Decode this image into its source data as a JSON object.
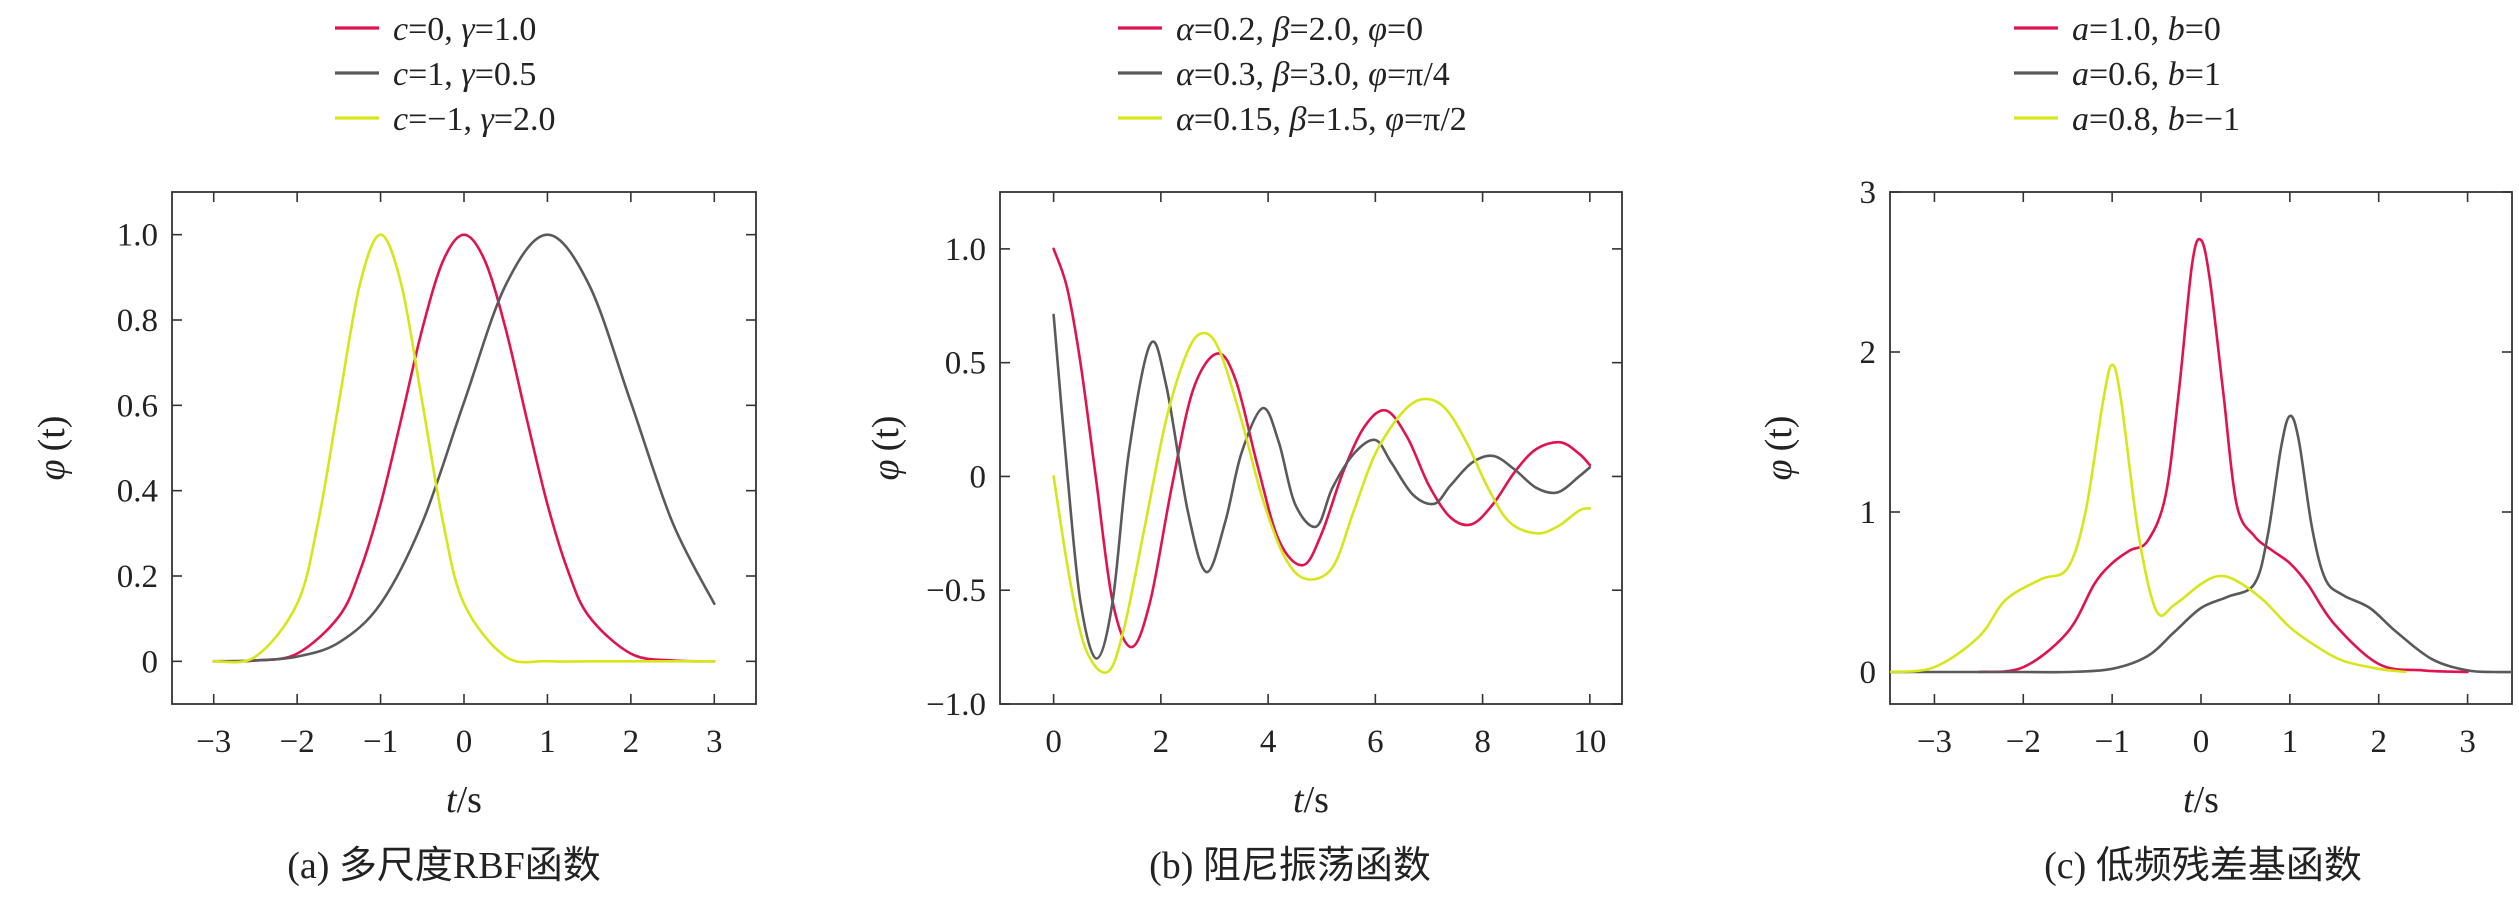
{
  "colors": {
    "red": "#e0134f",
    "gray": "#5a5a5a",
    "yellow": "#d6e61a"
  },
  "chart_data": [
    {
      "type": "line",
      "caption": "(a) 多尺度RBF函数",
      "xlabel": {
        "var": "t",
        "unit": "/s"
      },
      "ylabel": {
        "var": "φ",
        "arg": "(t)"
      },
      "xlim": [
        -3.5,
        3.5
      ],
      "ylim": [
        -0.1,
        1.1
      ],
      "xticks": [
        -3,
        -2,
        -1,
        0,
        1,
        2,
        3
      ],
      "xtick_labels": [
        "−3",
        "−2",
        "−1",
        "0",
        "1",
        "2",
        "3"
      ],
      "yticks": [
        0,
        0.2,
        0.4,
        0.6,
        0.8,
        1.0
      ],
      "ytick_labels": [
        "0",
        "0.2",
        "0.4",
        "0.6",
        "0.8",
        "1.0"
      ],
      "grid": false,
      "legend_placement": "top",
      "series": [
        {
          "name": "c=0, γ=1.0",
          "legend": [
            [
              "i",
              "c"
            ],
            [
              "r",
              "=0, "
            ],
            [
              "i",
              "γ"
            ],
            [
              "r",
              "=1.0"
            ]
          ],
          "color": "red",
          "x": [
            -3,
            -2.5,
            -2,
            -1.5,
            -1.25,
            -1,
            -0.75,
            -0.5,
            -0.25,
            0,
            0.25,
            0.5,
            0.75,
            1,
            1.25,
            1.5,
            2,
            2.5,
            3
          ],
          "y": [
            0.0001,
            0.002,
            0.018,
            0.105,
            0.21,
            0.368,
            0.57,
            0.779,
            0.939,
            1.0,
            0.939,
            0.779,
            0.57,
            0.368,
            0.21,
            0.105,
            0.018,
            0.002,
            0.0001
          ]
        },
        {
          "name": "c=1, γ=0.5",
          "legend": [
            [
              "i",
              "c"
            ],
            [
              "r",
              "=1, "
            ],
            [
              "i",
              "γ"
            ],
            [
              "r",
              "=0.5"
            ]
          ],
          "color": "gray",
          "x": [
            -3,
            -2.5,
            -2,
            -1.5,
            -1,
            -0.5,
            0,
            0.5,
            1,
            1.5,
            2,
            2.5,
            3
          ],
          "y": [
            0.0003,
            0.002,
            0.011,
            0.044,
            0.135,
            0.325,
            0.607,
            0.882,
            1.0,
            0.882,
            0.607,
            0.325,
            0.135
          ]
        },
        {
          "name": "c=−1, γ=2.0",
          "legend": [
            [
              "i",
              "c"
            ],
            [
              "r",
              "=−1, "
            ],
            [
              "i",
              "γ"
            ],
            [
              "r",
              "=2.0"
            ]
          ],
          "color": "yellow",
          "x": [
            -3,
            -2.5,
            -2,
            -1.75,
            -1.5,
            -1.25,
            -1,
            -0.75,
            -0.5,
            -0.25,
            0,
            0.5,
            1,
            1.5,
            2,
            2.5,
            3
          ],
          "y": [
            0.0003,
            0.011,
            0.135,
            0.325,
            0.607,
            0.882,
            1.0,
            0.882,
            0.607,
            0.325,
            0.135,
            0.011,
            0.0003,
            0,
            0,
            0,
            0
          ]
        }
      ]
    },
    {
      "type": "line",
      "caption": "(b) 阻尼振荡函数",
      "xlabel": {
        "var": "t",
        "unit": "/s"
      },
      "ylabel": {
        "var": "φ",
        "arg": "(t)"
      },
      "xlim": [
        -1,
        10.6
      ],
      "ylim": [
        -1.0,
        1.25
      ],
      "xticks": [
        0,
        2,
        4,
        6,
        8,
        10
      ],
      "xtick_labels": [
        "0",
        "2",
        "4",
        "6",
        "8",
        "10"
      ],
      "yticks": [
        -1.0,
        -0.5,
        0,
        0.5,
        1.0
      ],
      "ytick_labels": [
        "−1.0",
        "−0.5",
        "0",
        "0.5",
        "1.0"
      ],
      "grid": false,
      "legend_placement": "top",
      "series": [
        {
          "name": "α=0.2, β=2.0, φ=0",
          "legend": [
            [
              "i",
              "α"
            ],
            [
              "r",
              "=0.2, "
            ],
            [
              "i",
              "β"
            ],
            [
              "r",
              "=2.0, "
            ],
            [
              "i",
              "φ"
            ],
            [
              "r",
              "=0"
            ]
          ],
          "color": "red",
          "x": [
            0,
            0.25,
            0.5,
            0.785,
            1.1,
            1.45,
            1.8,
            2.2,
            2.6,
            3.05,
            3.4,
            3.8,
            4.2,
            4.65,
            5.0,
            5.4,
            5.8,
            6.2,
            6.6,
            7.0,
            7.4,
            7.8,
            8.2,
            8.6,
            9.0,
            9.45,
            9.8,
            10
          ],
          "y": [
            1.0,
            0.83,
            0.5,
            0.0,
            -0.55,
            -0.75,
            -0.55,
            -0.05,
            0.38,
            0.54,
            0.42,
            0.05,
            -0.28,
            -0.39,
            -0.25,
            0.02,
            0.22,
            0.29,
            0.17,
            -0.04,
            -0.18,
            -0.21,
            -0.12,
            0.02,
            0.12,
            0.15,
            0.1,
            0.05
          ]
        },
        {
          "name": "α=0.3, β=3.0, φ=π/4",
          "legend": [
            [
              "i",
              "α"
            ],
            [
              "r",
              "=0.3, "
            ],
            [
              "i",
              "β"
            ],
            [
              "r",
              "=3.0, "
            ],
            [
              "i",
              "φ"
            ],
            [
              "r",
              "=π/4"
            ]
          ],
          "color": "gray",
          "x": [
            0,
            0.26,
            0.5,
            0.8,
            1.1,
            1.4,
            1.8,
            2.1,
            2.5,
            2.85,
            3.2,
            3.5,
            3.9,
            4.2,
            4.5,
            4.9,
            5.2,
            5.6,
            6.0,
            6.3,
            6.7,
            7.1,
            7.4,
            7.8,
            8.2,
            8.6,
            9.0,
            9.4,
            9.8,
            10
          ],
          "y": [
            0.71,
            0.0,
            -0.55,
            -0.8,
            -0.55,
            0.1,
            0.58,
            0.4,
            -0.15,
            -0.42,
            -0.2,
            0.1,
            0.3,
            0.15,
            -0.12,
            -0.22,
            -0.05,
            0.1,
            0.16,
            0.06,
            -0.08,
            -0.12,
            -0.04,
            0.06,
            0.09,
            0.03,
            -0.05,
            -0.07,
            0.0,
            0.04
          ]
        },
        {
          "name": "α=0.15, β=1.5, φ=π/2",
          "legend": [
            [
              "i",
              "α"
            ],
            [
              "r",
              "=0.15, "
            ],
            [
              "i",
              "β"
            ],
            [
              "r",
              "=1.5, "
            ],
            [
              "i",
              "φ"
            ],
            [
              "r",
              "=π/2"
            ]
          ],
          "color": "yellow",
          "x": [
            0,
            0.3,
            0.6,
            1.0,
            1.3,
            1.7,
            2.1,
            2.5,
            2.8,
            3.1,
            3.5,
            3.9,
            4.3,
            4.7,
            5.2,
            5.6,
            6.0,
            6.5,
            6.9,
            7.3,
            7.7,
            8.1,
            8.5,
            9.0,
            9.4,
            9.8,
            10
          ],
          "y": [
            0.0,
            -0.45,
            -0.76,
            -0.86,
            -0.68,
            -0.22,
            0.25,
            0.55,
            0.63,
            0.55,
            0.25,
            -0.1,
            -0.35,
            -0.45,
            -0.4,
            -0.15,
            0.1,
            0.28,
            0.34,
            0.3,
            0.15,
            -0.05,
            -0.2,
            -0.25,
            -0.22,
            -0.15,
            -0.14
          ]
        }
      ]
    },
    {
      "type": "line",
      "caption": "(c) 低频残差基函数",
      "xlabel": {
        "var": "t",
        "unit": "/s"
      },
      "ylabel": {
        "var": "φ",
        "arg": "(t)"
      },
      "xlim": [
        -3.5,
        3.5
      ],
      "ylim": [
        -0.2,
        3.0
      ],
      "xticks": [
        -3,
        -2,
        -1,
        0,
        1,
        2,
        3
      ],
      "xtick_labels": [
        "−3",
        "−2",
        "−1",
        "0",
        "1",
        "2",
        "3"
      ],
      "yticks": [
        0,
        1,
        2,
        3
      ],
      "ytick_labels": [
        "0",
        "1",
        "2",
        "3"
      ],
      "grid": false,
      "legend_placement": "top",
      "series": [
        {
          "name": "a=1.0, b=0",
          "legend": [
            [
              "i",
              "a"
            ],
            [
              "r",
              "=1.0, "
            ],
            [
              "i",
              "b"
            ],
            [
              "r",
              "=0"
            ]
          ],
          "color": "red",
          "x": [
            -2.5,
            -2.0,
            -1.5,
            -1.2,
            -1.0,
            -0.8,
            -0.6,
            -0.4,
            -0.25,
            -0.1,
            0,
            0.1,
            0.25,
            0.4,
            0.6,
            0.8,
            1.0,
            1.2,
            1.5,
            2.0,
            2.5,
            3.0
          ],
          "y": [
            0.0,
            0.03,
            0.25,
            0.55,
            0.68,
            0.76,
            0.82,
            1.1,
            1.75,
            2.55,
            2.7,
            2.45,
            1.75,
            1.05,
            0.85,
            0.76,
            0.68,
            0.55,
            0.3,
            0.05,
            0.01,
            0.0
          ]
        },
        {
          "name": "a=0.6, b=1",
          "legend": [
            [
              "i",
              "a"
            ],
            [
              "r",
              "=0.6, "
            ],
            [
              "i",
              "b"
            ],
            [
              "r",
              "=1"
            ]
          ],
          "color": "gray",
          "x": [
            -3.5,
            -2.0,
            -1.5,
            -1.0,
            -0.6,
            -0.3,
            0,
            0.3,
            0.6,
            0.75,
            0.9,
            1.0,
            1.1,
            1.25,
            1.4,
            1.6,
            1.9,
            2.2,
            2.6,
            3.0,
            3.3,
            3.5
          ],
          "y": [
            0.0,
            0.0,
            0.0,
            0.02,
            0.1,
            0.25,
            0.4,
            0.47,
            0.55,
            0.85,
            1.4,
            1.6,
            1.45,
            0.9,
            0.58,
            0.48,
            0.4,
            0.25,
            0.08,
            0.01,
            0.0,
            0.0
          ]
        },
        {
          "name": "a=0.8, b=−1",
          "legend": [
            [
              "i",
              "a"
            ],
            [
              "r",
              "=0.8, "
            ],
            [
              "i",
              "b"
            ],
            [
              "r",
              "=−1"
            ]
          ],
          "color": "yellow",
          "x": [
            -3.5,
            -3.0,
            -2.5,
            -2.2,
            -1.8,
            -1.5,
            -1.3,
            -1.1,
            -1.0,
            -0.9,
            -0.7,
            -0.5,
            -0.3,
            0,
            0.2,
            0.4,
            0.7,
            1.0,
            1.3,
            1.6,
            2.0,
            2.3
          ],
          "y": [
            0.0,
            0.03,
            0.22,
            0.45,
            0.58,
            0.65,
            1.0,
            1.7,
            1.92,
            1.7,
            0.85,
            0.38,
            0.42,
            0.55,
            0.6,
            0.57,
            0.45,
            0.28,
            0.16,
            0.07,
            0.02,
            0.0
          ]
        }
      ]
    }
  ]
}
